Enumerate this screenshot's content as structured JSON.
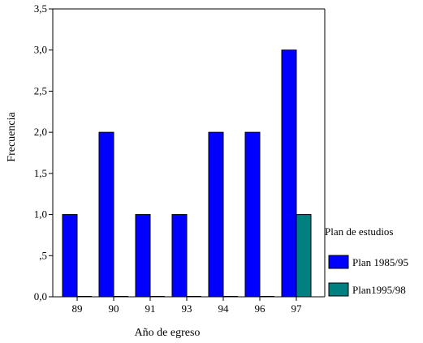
{
  "chart_data": {
    "type": "bar",
    "xlabel": "Año de egreso",
    "ylabel": "Frecuencia",
    "categories": [
      "89",
      "90",
      "91",
      "93",
      "94",
      "96",
      "97"
    ],
    "ylim": [
      0,
      3.5
    ],
    "yticks": [
      0,
      0.5,
      1,
      1.5,
      2,
      2.5,
      3,
      3.5
    ],
    "ytick_labels": [
      "0,0",
      ",5",
      "1,0",
      "1,5",
      "2,0",
      "2,5",
      "3,0",
      "3,5"
    ],
    "grid": false,
    "legend": {
      "title": "Plan de estudios",
      "position": "right"
    },
    "series": [
      {
        "name": "Plan 1985/95",
        "color": "#0000ff",
        "values": [
          1,
          2,
          1,
          1,
          2,
          2,
          3
        ]
      },
      {
        "name": "Plan1995/98",
        "color": "#008080",
        "values": [
          0,
          0,
          0,
          0,
          0,
          0,
          1
        ]
      }
    ]
  }
}
